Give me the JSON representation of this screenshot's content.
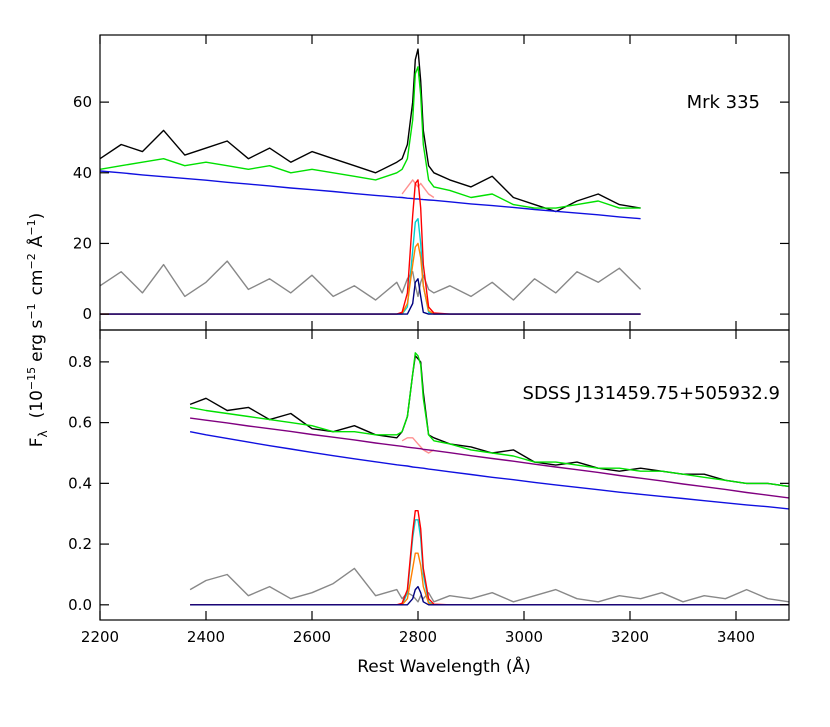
{
  "chart_data": [
    {
      "type": "line",
      "annotation": "Mrk 335",
      "ylabel": [
        "F",
        "λ",
        "(10",
        "−15",
        "erg s",
        "−1",
        "cm",
        "−2",
        "Å",
        "−1",
        ")"
      ],
      "xlim": [
        2200,
        3500
      ],
      "ylim": [
        -4.5,
        79
      ],
      "yticks": [
        0,
        20,
        40,
        60
      ],
      "x": [
        2200,
        2240,
        2280,
        2320,
        2360,
        2400,
        2440,
        2480,
        2520,
        2560,
        2600,
        2640,
        2680,
        2720,
        2760,
        2770,
        2780,
        2790,
        2795,
        2800,
        2805,
        2810,
        2820,
        2830,
        2860,
        2900,
        2940,
        2980,
        3020,
        3060,
        3100,
        3140,
        3180,
        3220
      ],
      "series": [
        {
          "color": "#888888",
          "values": [
            8,
            12,
            6,
            14,
            5,
            9,
            15,
            7,
            10,
            6,
            11,
            5,
            8,
            4,
            9,
            6,
            10,
            12,
            8,
            5,
            9,
            11,
            7,
            6,
            8,
            5,
            9,
            4,
            10,
            6,
            12,
            9,
            13,
            7
          ]
        },
        {
          "color": "#000000",
          "values": [
            44,
            48,
            46,
            52,
            45,
            47,
            49,
            44,
            47,
            43,
            46,
            44,
            42,
            40,
            43,
            44,
            48,
            60,
            72,
            75,
            66,
            52,
            42,
            40,
            38,
            36,
            39,
            33,
            31,
            29,
            32,
            34,
            31,
            30
          ]
        },
        {
          "color": "#ff9090",
          "values": [
            null,
            null,
            null,
            null,
            null,
            null,
            null,
            null,
            null,
            null,
            null,
            null,
            null,
            null,
            null,
            34,
            36,
            38,
            37,
            36,
            37,
            36,
            34,
            33,
            null,
            null,
            null,
            null,
            null,
            null,
            null,
            null,
            null,
            null
          ]
        },
        {
          "color": "#1010e0",
          "values": [
            40.5,
            40.0,
            39.4,
            38.9,
            38.4,
            37.9,
            37.3,
            36.8,
            36.3,
            35.7,
            35.2,
            34.7,
            34.1,
            33.6,
            33.1,
            33.0,
            32.8,
            32.7,
            32.6,
            32.6,
            32.5,
            32.4,
            32.3,
            32.2,
            31.8,
            31.2,
            30.7,
            30.2,
            29.6,
            29.1,
            28.6,
            28.1,
            27.5,
            27.0
          ]
        },
        {
          "color": "#00e000",
          "values": [
            41,
            42,
            43,
            44,
            42,
            43,
            42,
            41,
            42,
            40,
            41,
            40,
            39,
            38,
            40,
            41,
            44,
            55,
            68,
            70,
            62,
            48,
            38,
            36,
            35,
            33,
            34,
            31,
            30,
            30,
            31,
            32,
            30,
            30
          ]
        },
        {
          "color": "#00d0d0",
          "values": [
            0,
            0,
            0,
            0,
            0,
            0,
            0,
            0,
            0,
            0,
            0,
            0,
            0,
            0,
            0,
            0,
            2,
            18,
            26,
            27,
            20,
            8,
            0.5,
            0,
            0,
            0,
            0,
            0,
            0,
            0,
            0,
            0,
            0,
            0
          ]
        },
        {
          "color": "#ff8000",
          "values": [
            0,
            0,
            0,
            0,
            0,
            0,
            0,
            0,
            0,
            0,
            0,
            0,
            0,
            0,
            0,
            0.2,
            3,
            14,
            19,
            20,
            16,
            8,
            1,
            0,
            0,
            0,
            0,
            0,
            0,
            0,
            0,
            0,
            0,
            0
          ]
        },
        {
          "color": "#ff0000",
          "values": [
            0,
            0,
            0,
            0,
            0,
            0,
            0,
            0,
            0,
            0,
            0,
            0,
            0,
            0,
            0,
            0.5,
            6,
            28,
            37,
            38,
            30,
            14,
            2,
            0.3,
            0,
            0,
            0,
            0,
            0,
            0,
            0,
            0,
            0,
            0
          ]
        },
        {
          "color": "#000080",
          "values": [
            0,
            0,
            0,
            0,
            0,
            0,
            0,
            0,
            0,
            0,
            0,
            0,
            0,
            0,
            0,
            0,
            0,
            3,
            9,
            10,
            5,
            0.5,
            0,
            0,
            0,
            0,
            0,
            0,
            0,
            0,
            0,
            0,
            0,
            0
          ]
        }
      ]
    },
    {
      "type": "line",
      "annotation": "SDSS J131459.75+505932.9",
      "xlabel": "Rest Wavelength  (Å)",
      "xlim": [
        2200,
        3500
      ],
      "xticks": [
        2200,
        2400,
        2600,
        2800,
        3000,
        3200,
        3400
      ],
      "ylim": [
        -0.05,
        0.905
      ],
      "yticks": [
        {
          "value": 0,
          "label": "0.0"
        },
        0.2,
        0.4,
        0.6,
        0.8
      ],
      "x": [
        2370,
        2400,
        2440,
        2480,
        2520,
        2560,
        2600,
        2640,
        2680,
        2720,
        2760,
        2770,
        2780,
        2790,
        2795,
        2800,
        2805,
        2810,
        2820,
        2830,
        2860,
        2900,
        2940,
        2980,
        3020,
        3060,
        3100,
        3140,
        3180,
        3220,
        3260,
        3300,
        3340,
        3380,
        3420,
        3460,
        3500
      ],
      "series": [
        {
          "color": "#888888",
          "values": [
            0.05,
            0.08,
            0.1,
            0.03,
            0.06,
            0.02,
            0.04,
            0.07,
            0.12,
            0.03,
            0.05,
            0.02,
            0.04,
            0.03,
            0.02,
            0.01,
            0.03,
            0.02,
            0.04,
            0.01,
            0.03,
            0.02,
            0.04,
            0.01,
            0.03,
            0.05,
            0.02,
            0.01,
            0.03,
            0.02,
            0.04,
            0.01,
            0.03,
            0.02,
            0.05,
            0.02,
            0.01
          ]
        },
        {
          "color": "#000000",
          "values": [
            0.66,
            0.68,
            0.64,
            0.65,
            0.61,
            0.63,
            0.58,
            0.57,
            0.59,
            0.56,
            0.55,
            0.57,
            0.62,
            0.76,
            0.82,
            0.81,
            0.8,
            0.7,
            0.56,
            0.55,
            0.53,
            0.52,
            0.5,
            0.51,
            0.47,
            0.46,
            0.47,
            0.45,
            0.44,
            0.45,
            0.44,
            0.43,
            0.43,
            0.41,
            0.4,
            0.4,
            0.39
          ]
        },
        {
          "color": "#ff9090",
          "values": [
            null,
            null,
            null,
            null,
            null,
            null,
            null,
            null,
            null,
            null,
            null,
            0.54,
            0.55,
            0.55,
            0.54,
            0.53,
            0.52,
            0.51,
            0.5,
            0.51,
            null,
            null,
            null,
            null,
            null,
            null,
            null,
            null,
            null,
            null,
            null,
            null,
            null,
            null,
            null,
            null,
            null
          ]
        },
        {
          "color": "#1010e0",
          "values": [
            0.57,
            0.56,
            0.548,
            0.536,
            0.524,
            0.513,
            0.502,
            0.491,
            0.481,
            0.471,
            0.461,
            0.459,
            0.457,
            0.454,
            0.453,
            0.452,
            0.451,
            0.45,
            0.447,
            0.445,
            0.438,
            0.429,
            0.42,
            0.412,
            0.403,
            0.395,
            0.387,
            0.379,
            0.371,
            0.364,
            0.357,
            0.35,
            0.343,
            0.336,
            0.329,
            0.323,
            0.316
          ]
        },
        {
          "color": "#800080",
          "values": [
            0.615,
            0.608,
            0.599,
            0.589,
            0.58,
            0.571,
            0.561,
            0.552,
            0.543,
            0.533,
            0.524,
            0.522,
            0.519,
            0.517,
            0.516,
            0.515,
            0.514,
            0.512,
            0.51,
            0.508,
            0.501,
            0.491,
            0.482,
            0.473,
            0.463,
            0.454,
            0.445,
            0.436,
            0.426,
            0.417,
            0.408,
            0.398,
            0.389,
            0.38,
            0.37,
            0.361,
            0.352
          ]
        },
        {
          "color": "#00e000",
          "values": [
            0.65,
            0.64,
            0.63,
            0.62,
            0.61,
            0.6,
            0.59,
            0.57,
            0.57,
            0.56,
            0.56,
            0.57,
            0.62,
            0.76,
            0.83,
            0.82,
            0.79,
            0.68,
            0.56,
            0.54,
            0.53,
            0.51,
            0.5,
            0.49,
            0.47,
            0.47,
            0.46,
            0.45,
            0.45,
            0.44,
            0.44,
            0.43,
            0.42,
            0.41,
            0.4,
            0.4,
            0.39
          ]
        },
        {
          "color": "#00d0d0",
          "values": [
            0,
            0,
            0,
            0,
            0,
            0,
            0,
            0,
            0,
            0,
            0,
            0,
            0.04,
            0.22,
            0.28,
            0.28,
            0.22,
            0.1,
            0.01,
            0,
            0,
            0,
            0,
            0,
            0,
            0,
            0,
            0,
            0,
            0,
            0,
            0,
            0,
            0,
            0,
            0,
            0
          ]
        },
        {
          "color": "#ff8000",
          "values": [
            0,
            0,
            0,
            0,
            0,
            0,
            0,
            0,
            0,
            0,
            0,
            0,
            0.02,
            0.12,
            0.17,
            0.17,
            0.13,
            0.06,
            0.005,
            0,
            0,
            0,
            0,
            0,
            0,
            0,
            0,
            0,
            0,
            0,
            0,
            0,
            0,
            0,
            0,
            0,
            0
          ]
        },
        {
          "color": "#ff0000",
          "values": [
            0,
            0,
            0,
            0,
            0,
            0,
            0,
            0,
            0,
            0,
            0,
            0.005,
            0.05,
            0.24,
            0.31,
            0.31,
            0.25,
            0.12,
            0.02,
            0.002,
            0,
            0,
            0,
            0,
            0,
            0,
            0,
            0,
            0,
            0,
            0,
            0,
            0,
            0,
            0,
            0,
            0
          ]
        },
        {
          "color": "#000080",
          "values": [
            0,
            0,
            0,
            0,
            0,
            0,
            0,
            0,
            0,
            0,
            0,
            0,
            0,
            0.02,
            0.05,
            0.06,
            0.04,
            0.01,
            0,
            0,
            0,
            0,
            0,
            0,
            0,
            0,
            0,
            0,
            0,
            0,
            0,
            0,
            0,
            0,
            0,
            0,
            0
          ]
        }
      ]
    }
  ]
}
